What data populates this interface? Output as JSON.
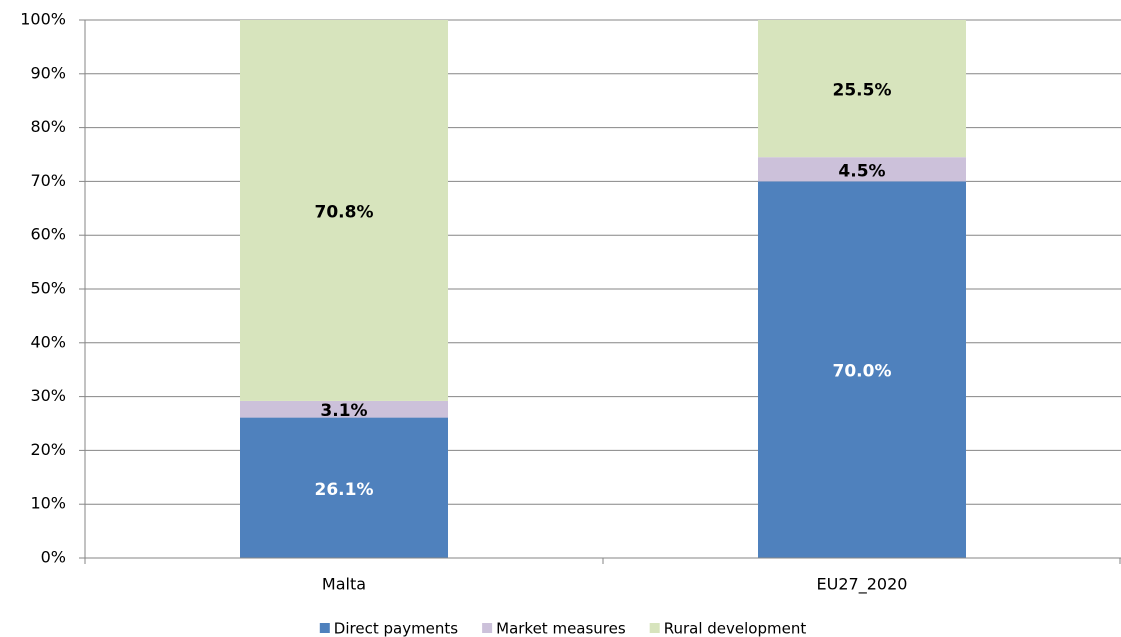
{
  "chart_data": {
    "type": "bar",
    "stacked": true,
    "categories": [
      "Malta",
      "EU27_2020"
    ],
    "series": [
      {
        "name": "Direct payments",
        "color": "#4f81bd",
        "label_color": "#ffffff",
        "values": [
          26.1,
          70.0
        ],
        "value_labels": [
          "26.1%",
          "70.0%"
        ]
      },
      {
        "name": "Market measures",
        "color": "#ccc1da",
        "label_color": "#000000",
        "values": [
          3.1,
          4.5
        ],
        "value_labels": [
          "3.1%",
          "4.5%"
        ]
      },
      {
        "name": "Rural development",
        "color": "#d7e4bd",
        "label_color": "#000000",
        "values": [
          70.8,
          25.5
        ],
        "value_labels": [
          "70.8%",
          "25.5%"
        ]
      }
    ],
    "ylim": [
      0,
      100
    ],
    "yticks": [
      {
        "value": 0,
        "label": "0%"
      },
      {
        "value": 10,
        "label": "10%"
      },
      {
        "value": 20,
        "label": "20%"
      },
      {
        "value": 30,
        "label": "30%"
      },
      {
        "value": 40,
        "label": "40%"
      },
      {
        "value": 50,
        "label": "50%"
      },
      {
        "value": 60,
        "label": "60%"
      },
      {
        "value": 70,
        "label": "70%"
      },
      {
        "value": 80,
        "label": "80%"
      },
      {
        "value": 90,
        "label": "90%"
      },
      {
        "value": 100,
        "label": "100%"
      }
    ],
    "grid": true,
    "legend": "bottom"
  }
}
